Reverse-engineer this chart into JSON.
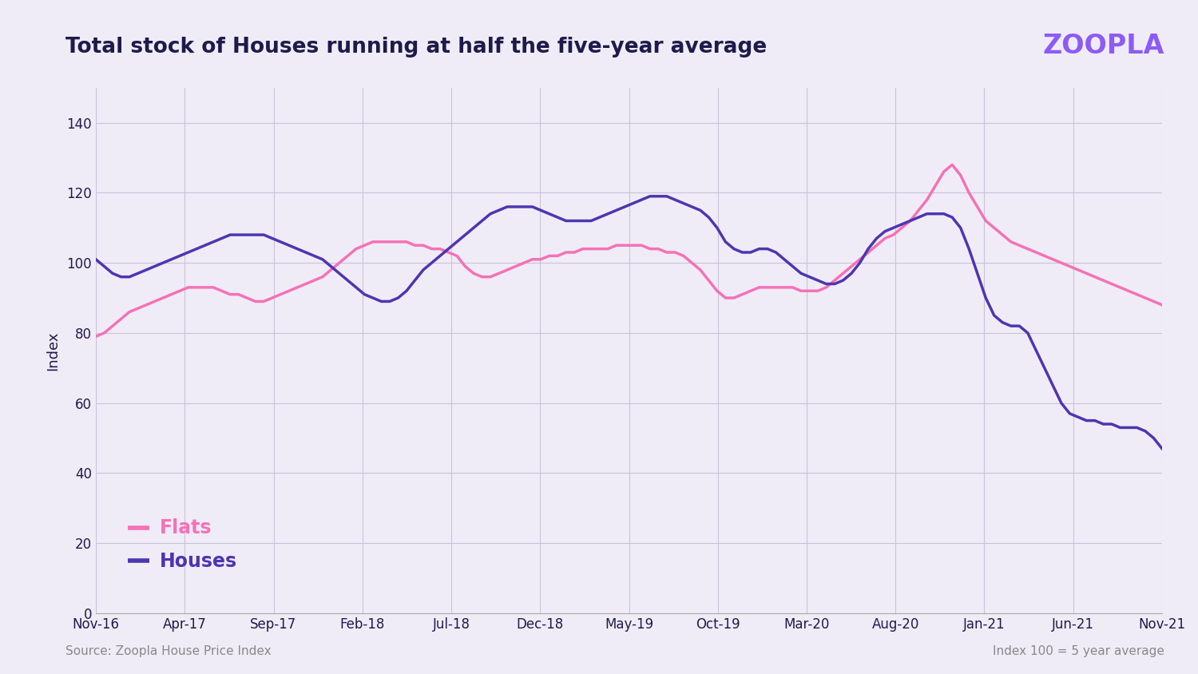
{
  "title": "Total stock of Houses running at half the five-year average",
  "ylabel": "Index",
  "source_left": "Source: Zoopla House Price Index",
  "source_right": "Index 100 = 5 year average",
  "zoopla_text": "ZOOPLA",
  "background_color": "#f0ecf7",
  "left_bar_color": "#6b21cc",
  "ylim": [
    0,
    150
  ],
  "yticks": [
    0,
    20,
    40,
    60,
    80,
    100,
    120,
    140
  ],
  "xtick_labels": [
    "Nov-16",
    "Apr-17",
    "Sep-17",
    "Feb-18",
    "Jul-18",
    "Dec-18",
    "May-19",
    "Oct-19",
    "Mar-20",
    "Aug-20",
    "Jan-21",
    "Jun-21",
    "Nov-21"
  ],
  "flats_color": "#f472b6",
  "houses_color": "#4f35b0",
  "flats_label": "Flats",
  "houses_label": "Houses",
  "tick_label_color": "#1e1b4b",
  "flats_data": [
    79,
    80,
    82,
    84,
    86,
    87,
    88,
    89,
    90,
    91,
    92,
    93,
    93,
    93,
    93,
    92,
    91,
    91,
    90,
    89,
    89,
    90,
    91,
    92,
    93,
    94,
    95,
    96,
    98,
    100,
    102,
    104,
    105,
    106,
    106,
    106,
    106,
    106,
    105,
    105,
    104,
    104,
    103,
    102,
    99,
    97,
    96,
    96,
    97,
    98,
    99,
    100,
    101,
    101,
    102,
    102,
    103,
    103,
    104,
    104,
    104,
    104,
    105,
    105,
    105,
    105,
    104,
    104,
    103,
    103,
    102,
    100,
    98,
    95,
    92,
    90,
    90,
    91,
    92,
    93,
    93,
    93,
    93,
    93,
    92,
    92,
    92,
    93,
    95,
    97,
    99,
    101,
    103,
    105,
    107,
    108,
    110,
    112,
    115,
    118,
    122,
    126,
    128,
    125,
    120,
    116,
    112,
    110,
    108,
    106,
    105,
    104,
    103,
    102,
    101,
    100,
    99,
    98,
    97,
    96,
    95,
    94,
    93,
    92,
    91,
    90,
    89,
    88
  ],
  "houses_data": [
    101,
    99,
    97,
    96,
    96,
    97,
    98,
    99,
    100,
    101,
    102,
    103,
    104,
    105,
    106,
    107,
    108,
    108,
    108,
    108,
    108,
    107,
    106,
    105,
    104,
    103,
    102,
    101,
    99,
    97,
    95,
    93,
    91,
    90,
    89,
    89,
    90,
    92,
    95,
    98,
    100,
    102,
    104,
    106,
    108,
    110,
    112,
    114,
    115,
    116,
    116,
    116,
    116,
    115,
    114,
    113,
    112,
    112,
    112,
    112,
    113,
    114,
    115,
    116,
    117,
    118,
    119,
    119,
    119,
    118,
    117,
    116,
    115,
    113,
    110,
    106,
    104,
    103,
    103,
    104,
    104,
    103,
    101,
    99,
    97,
    96,
    95,
    94,
    94,
    95,
    97,
    100,
    104,
    107,
    109,
    110,
    111,
    112,
    113,
    114,
    114,
    114,
    113,
    110,
    104,
    97,
    90,
    85,
    83,
    82,
    82,
    80,
    75,
    70,
    65,
    60,
    57,
    56,
    55,
    55,
    54,
    54,
    53,
    53,
    53,
    52,
    50,
    47
  ]
}
